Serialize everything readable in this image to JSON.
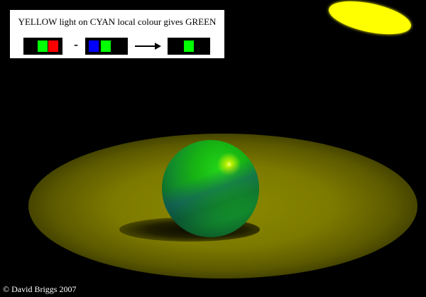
{
  "caption": "YELLOW light on CYAN local colour gives GREEN",
  "equation": {
    "light_bars": [
      "#00ff00",
      "#ff0000"
    ],
    "surface_bars": [
      "#0000ff",
      "#00ff00"
    ],
    "result_bars": [
      "#00ff00"
    ],
    "operator": "-"
  },
  "credit": "© David Briggs 2007",
  "colors": {
    "light": "#ffff00",
    "ball": "#17b512",
    "background": "#000000"
  }
}
